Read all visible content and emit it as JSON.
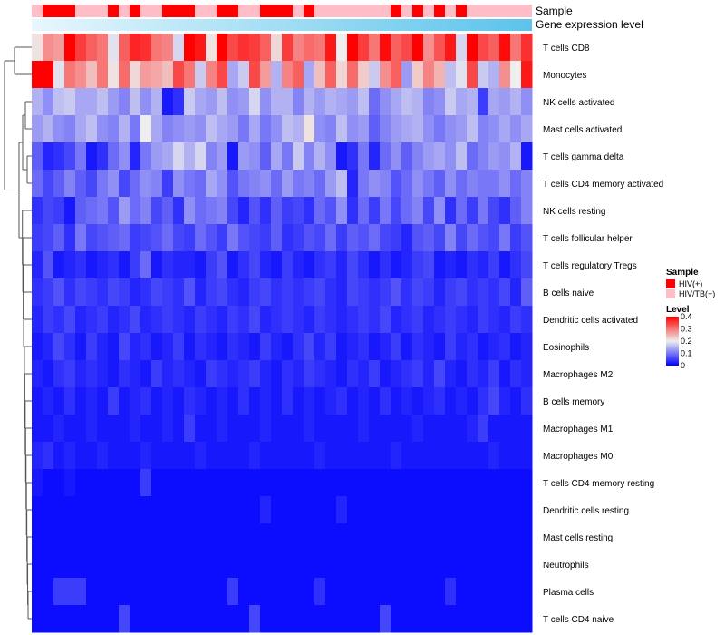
{
  "chart_data": {
    "type": "heatmap",
    "annotation_rows": [
      "Sample",
      "Gene expression level"
    ],
    "row_labels": [
      "T cells CD8",
      "Monocytes",
      "NK cells activated",
      "Mast cells activated",
      "T cells gamma delta",
      "T cells CD4 memory activated",
      "NK cells resting",
      "T cells follicular helper",
      "T cells regulatory  Tregs",
      "B cells naive",
      "Dendritic cells activated",
      "Eosinophils",
      "Macrophages M2",
      "B cells memory",
      "Macrophages M1",
      "Macrophages M0",
      "T cells CD4 memory resting",
      "Dendritic cells resting",
      "Mast cells resting",
      "Neutrophils",
      "Plasma cells",
      "T cells CD4 naive"
    ],
    "n_columns": 46,
    "sample_groups": [
      1,
      0,
      0,
      0,
      1,
      1,
      1,
      0,
      1,
      0,
      1,
      1,
      0,
      0,
      0,
      1,
      1,
      0,
      0,
      1,
      1,
      0,
      0,
      0,
      1,
      0,
      1,
      1,
      1,
      1,
      1,
      1,
      1,
      0,
      1,
      0,
      1,
      0,
      1,
      0,
      1,
      1,
      1,
      1,
      1,
      1
    ],
    "values": [
      [
        0.21,
        0.28,
        0.27,
        0.4,
        0.35,
        0.32,
        0.3,
        0.19,
        0.32,
        0.37,
        0.36,
        0.3,
        0.29,
        0.18,
        0.4,
        0.38,
        0.21,
        0.4,
        0.34,
        0.36,
        0.35,
        0.32,
        0.22,
        0.35,
        0.29,
        0.31,
        0.3,
        0.38,
        0.2,
        0.4,
        0.35,
        0.3,
        0.39,
        0.32,
        0.34,
        0.4,
        0.28,
        0.33,
        0.38,
        0.18,
        0.4,
        0.34,
        0.32,
        0.39,
        0.3,
        0.36
      ],
      [
        0.4,
        0.4,
        0.19,
        0.3,
        0.28,
        0.24,
        0.3,
        0.21,
        0.31,
        0.22,
        0.27,
        0.26,
        0.24,
        0.34,
        0.3,
        0.17,
        0.29,
        0.34,
        0.14,
        0.17,
        0.34,
        0.27,
        0.15,
        0.29,
        0.32,
        0.14,
        0.24,
        0.32,
        0.22,
        0.31,
        0.23,
        0.17,
        0.28,
        0.32,
        0.13,
        0.23,
        0.29,
        0.25,
        0.16,
        0.19,
        0.34,
        0.17,
        0.15,
        0.28,
        0.2,
        0.38
      ],
      [
        0.15,
        0.12,
        0.16,
        0.17,
        0.14,
        0.14,
        0.16,
        0.13,
        0.11,
        0.16,
        0.12,
        0.15,
        0.02,
        0.04,
        0.17,
        0.14,
        0.13,
        0.16,
        0.12,
        0.13,
        0.18,
        0.12,
        0.15,
        0.15,
        0.11,
        0.15,
        0.13,
        0.15,
        0.14,
        0.13,
        0.16,
        0.09,
        0.12,
        0.14,
        0.16,
        0.15,
        0.11,
        0.12,
        0.17,
        0.14,
        0.15,
        0.05,
        0.14,
        0.13,
        0.15,
        0.12
      ],
      [
        0.13,
        0.15,
        0.12,
        0.11,
        0.14,
        0.16,
        0.12,
        0.11,
        0.15,
        0.1,
        0.2,
        0.14,
        0.11,
        0.12,
        0.13,
        0.12,
        0.16,
        0.14,
        0.13,
        0.1,
        0.14,
        0.1,
        0.12,
        0.16,
        0.15,
        0.21,
        0.12,
        0.11,
        0.16,
        0.12,
        0.13,
        0.08,
        0.11,
        0.13,
        0.14,
        0.15,
        0.12,
        0.1,
        0.12,
        0.13,
        0.16,
        0.11,
        0.12,
        0.14,
        0.12,
        0.14
      ],
      [
        0.08,
        0.03,
        0.04,
        0.06,
        0.1,
        0.02,
        0.04,
        0.09,
        0.12,
        0.03,
        0.1,
        0.13,
        0.14,
        0.18,
        0.15,
        0.18,
        0.11,
        0.13,
        0.02,
        0.13,
        0.12,
        0.08,
        0.14,
        0.1,
        0.17,
        0.11,
        0.15,
        0.12,
        0.02,
        0.04,
        0.1,
        0.03,
        0.09,
        0.12,
        0.08,
        0.11,
        0.13,
        0.14,
        0.12,
        0.16,
        0.09,
        0.11,
        0.13,
        0.12,
        0.15,
        0.02
      ],
      [
        0.09,
        0.06,
        0.08,
        0.11,
        0.08,
        0.06,
        0.1,
        0.12,
        0.06,
        0.09,
        0.12,
        0.11,
        0.05,
        0.12,
        0.1,
        0.09,
        0.14,
        0.12,
        0.07,
        0.1,
        0.11,
        0.12,
        0.09,
        0.13,
        0.1,
        0.11,
        0.09,
        0.13,
        0.16,
        0.03,
        0.1,
        0.12,
        0.11,
        0.07,
        0.09,
        0.12,
        0.1,
        0.08,
        0.12,
        0.09,
        0.11,
        0.1,
        0.1,
        0.12,
        0.09,
        0.11
      ],
      [
        0.04,
        0.06,
        0.05,
        0.02,
        0.08,
        0.09,
        0.1,
        0.07,
        0.13,
        0.09,
        0.11,
        0.06,
        0.08,
        0.04,
        0.12,
        0.09,
        0.1,
        0.11,
        0.06,
        0.03,
        0.07,
        0.04,
        0.08,
        0.05,
        0.06,
        0.04,
        0.09,
        0.07,
        0.12,
        0.04,
        0.09,
        0.05,
        0.1,
        0.06,
        0.09,
        0.11,
        0.06,
        0.12,
        0.04,
        0.09,
        0.05,
        0.1,
        0.06,
        0.04,
        0.08,
        0.11
      ],
      [
        0.05,
        0.06,
        0.08,
        0.04,
        0.1,
        0.06,
        0.07,
        0.08,
        0.09,
        0.05,
        0.06,
        0.07,
        0.09,
        0.06,
        0.05,
        0.09,
        0.07,
        0.05,
        0.1,
        0.07,
        0.06,
        0.05,
        0.08,
        0.04,
        0.05,
        0.07,
        0.06,
        0.09,
        0.05,
        0.08,
        0.07,
        0.09,
        0.06,
        0.05,
        0.03,
        0.07,
        0.08,
        0.06,
        0.11,
        0.06,
        0.09,
        0.07,
        0.06,
        0.1,
        0.05,
        0.07
      ],
      [
        0.03,
        0.07,
        0.02,
        0.03,
        0.04,
        0.02,
        0.03,
        0.04,
        0.02,
        0.05,
        0.09,
        0.02,
        0.04,
        0.03,
        0.03,
        0.02,
        0.05,
        0.07,
        0.02,
        0.04,
        0.06,
        0.03,
        0.02,
        0.05,
        0.03,
        0.02,
        0.04,
        0.05,
        0.03,
        0.06,
        0.04,
        0.02,
        0.04,
        0.02,
        0.03,
        0.05,
        0.06,
        0.02,
        0.03,
        0.02,
        0.04,
        0.03,
        0.05,
        0.02,
        0.04,
        0.06
      ],
      [
        0.04,
        0.05,
        0.07,
        0.04,
        0.06,
        0.05,
        0.04,
        0.06,
        0.05,
        0.03,
        0.04,
        0.06,
        0.05,
        0.04,
        0.07,
        0.03,
        0.05,
        0.06,
        0.04,
        0.03,
        0.05,
        0.06,
        0.04,
        0.05,
        0.04,
        0.05,
        0.06,
        0.04,
        0.03,
        0.06,
        0.05,
        0.04,
        0.05,
        0.07,
        0.04,
        0.06,
        0.05,
        0.03,
        0.05,
        0.06,
        0.04,
        0.05,
        0.04,
        0.06,
        0.03,
        0.08
      ],
      [
        0.03,
        0.05,
        0.04,
        0.06,
        0.03,
        0.04,
        0.05,
        0.03,
        0.04,
        0.06,
        0.03,
        0.04,
        0.05,
        0.04,
        0.03,
        0.05,
        0.04,
        0.03,
        0.05,
        0.04,
        0.06,
        0.03,
        0.04,
        0.05,
        0.04,
        0.03,
        0.05,
        0.04,
        0.03,
        0.04,
        0.05,
        0.04,
        0.06,
        0.03,
        0.04,
        0.05,
        0.03,
        0.04,
        0.05,
        0.04,
        0.03,
        0.05,
        0.04,
        0.03,
        0.05,
        0.04
      ],
      [
        0.02,
        0.03,
        0.06,
        0.04,
        0.02,
        0.05,
        0.03,
        0.02,
        0.06,
        0.03,
        0.04,
        0.02,
        0.03,
        0.05,
        0.02,
        0.04,
        0.03,
        0.02,
        0.04,
        0.03,
        0.02,
        0.05,
        0.03,
        0.02,
        0.04,
        0.06,
        0.03,
        0.05,
        0.02,
        0.03,
        0.04,
        0.02,
        0.03,
        0.05,
        0.02,
        0.04,
        0.03,
        0.02,
        0.05,
        0.03,
        0.04,
        0.02,
        0.03,
        0.04,
        0.02,
        0.03
      ],
      [
        0.03,
        0.02,
        0.04,
        0.05,
        0.03,
        0.04,
        0.03,
        0.02,
        0.04,
        0.03,
        0.02,
        0.05,
        0.03,
        0.04,
        0.03,
        0.02,
        0.05,
        0.04,
        0.03,
        0.04,
        0.05,
        0.03,
        0.02,
        0.04,
        0.03,
        0.05,
        0.04,
        0.03,
        0.02,
        0.04,
        0.03,
        0.05,
        0.02,
        0.03,
        0.04,
        0.05,
        0.03,
        0.06,
        0.03,
        0.02,
        0.04,
        0.03,
        0.05,
        0.02,
        0.04,
        0.03
      ],
      [
        0.02,
        0.03,
        0.02,
        0.04,
        0.02,
        0.03,
        0.02,
        0.05,
        0.02,
        0.03,
        0.04,
        0.02,
        0.03,
        0.02,
        0.04,
        0.03,
        0.02,
        0.03,
        0.02,
        0.04,
        0.02,
        0.03,
        0.02,
        0.04,
        0.02,
        0.03,
        0.02,
        0.03,
        0.04,
        0.02,
        0.03,
        0.02,
        0.04,
        0.02,
        0.03,
        0.02,
        0.03,
        0.04,
        0.02,
        0.03,
        0.02,
        0.04,
        0.06,
        0.03,
        0.02,
        0.04
      ],
      [
        0.02,
        0.02,
        0.03,
        0.02,
        0.02,
        0.03,
        0.02,
        0.02,
        0.02,
        0.03,
        0.02,
        0.02,
        0.03,
        0.02,
        0.05,
        0.02,
        0.02,
        0.03,
        0.02,
        0.02,
        0.02,
        0.03,
        0.02,
        0.02,
        0.02,
        0.03,
        0.02,
        0.02,
        0.02,
        0.02,
        0.03,
        0.02,
        0.02,
        0.02,
        0.02,
        0.03,
        0.02,
        0.02,
        0.02,
        0.02,
        0.03,
        0.05,
        0.02,
        0.02,
        0.02,
        0.02
      ],
      [
        0.03,
        0.04,
        0.02,
        0.03,
        0.02,
        0.02,
        0.03,
        0.02,
        0.02,
        0.02,
        0.03,
        0.02,
        0.02,
        0.02,
        0.02,
        0.03,
        0.02,
        0.02,
        0.02,
        0.02,
        0.03,
        0.02,
        0.02,
        0.02,
        0.02,
        0.02,
        0.03,
        0.02,
        0.02,
        0.02,
        0.02,
        0.02,
        0.02,
        0.03,
        0.02,
        0.02,
        0.02,
        0.02,
        0.02,
        0.02,
        0.02,
        0.02,
        0.03,
        0.02,
        0.02,
        0.02
      ],
      [
        0.02,
        0.01,
        0.01,
        0.02,
        0.01,
        0.01,
        0.01,
        0.01,
        0.01,
        0.01,
        0.05,
        0.01,
        0.01,
        0.01,
        0.01,
        0.01,
        0.01,
        0.01,
        0.01,
        0.01,
        0.01,
        0.01,
        0.01,
        0.01,
        0.01,
        0.01,
        0.01,
        0.01,
        0.01,
        0.01,
        0.01,
        0.01,
        0.01,
        0.01,
        0.01,
        0.01,
        0.01,
        0.01,
        0.01,
        0.01,
        0.01,
        0.01,
        0.01,
        0.01,
        0.01,
        0.01
      ],
      [
        0.01,
        0.01,
        0.01,
        0.01,
        0.01,
        0.01,
        0.01,
        0.01,
        0.01,
        0.01,
        0.01,
        0.01,
        0.01,
        0.01,
        0.01,
        0.01,
        0.01,
        0.01,
        0.01,
        0.01,
        0.01,
        0.03,
        0.01,
        0.01,
        0.01,
        0.01,
        0.01,
        0.01,
        0.03,
        0.01,
        0.01,
        0.01,
        0.01,
        0.01,
        0.01,
        0.01,
        0.01,
        0.01,
        0.01,
        0.01,
        0.01,
        0.01,
        0.01,
        0.01,
        0.01,
        0.01
      ],
      [
        0.01,
        0.01,
        0.01,
        0.01,
        0.01,
        0.01,
        0.01,
        0.01,
        0.01,
        0.01,
        0.01,
        0.01,
        0.01,
        0.01,
        0.01,
        0.01,
        0.01,
        0.01,
        0.01,
        0.01,
        0.01,
        0.01,
        0.01,
        0.01,
        0.01,
        0.01,
        0.01,
        0.01,
        0.01,
        0.01,
        0.01,
        0.01,
        0.01,
        0.01,
        0.01,
        0.01,
        0.01,
        0.01,
        0.01,
        0.01,
        0.01,
        0.01,
        0.01,
        0.01,
        0.01,
        0.01
      ],
      [
        0.01,
        0.01,
        0.01,
        0.01,
        0.01,
        0.01,
        0.01,
        0.01,
        0.01,
        0.01,
        0.01,
        0.01,
        0.01,
        0.01,
        0.01,
        0.01,
        0.01,
        0.01,
        0.01,
        0.01,
        0.01,
        0.01,
        0.01,
        0.01,
        0.01,
        0.01,
        0.01,
        0.01,
        0.01,
        0.01,
        0.01,
        0.01,
        0.01,
        0.01,
        0.01,
        0.01,
        0.01,
        0.01,
        0.01,
        0.01,
        0.01,
        0.01,
        0.01,
        0.01,
        0.01,
        0.01
      ],
      [
        0.01,
        0.01,
        0.05,
        0.05,
        0.05,
        0.01,
        0.01,
        0.01,
        0.01,
        0.01,
        0.01,
        0.01,
        0.01,
        0.01,
        0.01,
        0.01,
        0.01,
        0.01,
        0.05,
        0.01,
        0.01,
        0.01,
        0.01,
        0.01,
        0.01,
        0.01,
        0.04,
        0.01,
        0.01,
        0.01,
        0.01,
        0.01,
        0.01,
        0.01,
        0.01,
        0.01,
        0.01,
        0.01,
        0.04,
        0.01,
        0.01,
        0.01,
        0.01,
        0.01,
        0.01,
        0.01
      ],
      [
        0.01,
        0.01,
        0.01,
        0.01,
        0.01,
        0.01,
        0.01,
        0.01,
        0.06,
        0.01,
        0.01,
        0.01,
        0.01,
        0.01,
        0.01,
        0.01,
        0.01,
        0.01,
        0.01,
        0.01,
        0.06,
        0.01,
        0.01,
        0.01,
        0.01,
        0.01,
        0.01,
        0.01,
        0.01,
        0.01,
        0.01,
        0.01,
        0.06,
        0.01,
        0.01,
        0.01,
        0.01,
        0.01,
        0.01,
        0.01,
        0.01,
        0.01,
        0.01,
        0.01,
        0.01,
        0.01
      ]
    ],
    "color_scale": {
      "colors": [
        "#0000ff",
        "#eeeeee",
        "#ff0000"
      ],
      "stops": [
        0,
        0.2,
        0.4
      ]
    },
    "annotation_gradient": [
      "#e8f7fc",
      "#5bc3ec"
    ],
    "legend": {
      "sample_title": "Sample",
      "groups": [
        {
          "label": "HIV(+)",
          "color": "#ff0000"
        },
        {
          "label": "HIV/TB(+)",
          "color": "#ffbdc8"
        }
      ],
      "level_title": "Level",
      "level_ticks": [
        {
          "value": 0.4,
          "label": "0.4"
        },
        {
          "value": 0.3,
          "label": "0.3"
        },
        {
          "value": 0.2,
          "label": "0.2"
        },
        {
          "value": 0.1,
          "label": "0.1"
        },
        {
          "value": 0,
          "label": "0"
        }
      ],
      "level_range": [
        0,
        0.4
      ]
    }
  }
}
